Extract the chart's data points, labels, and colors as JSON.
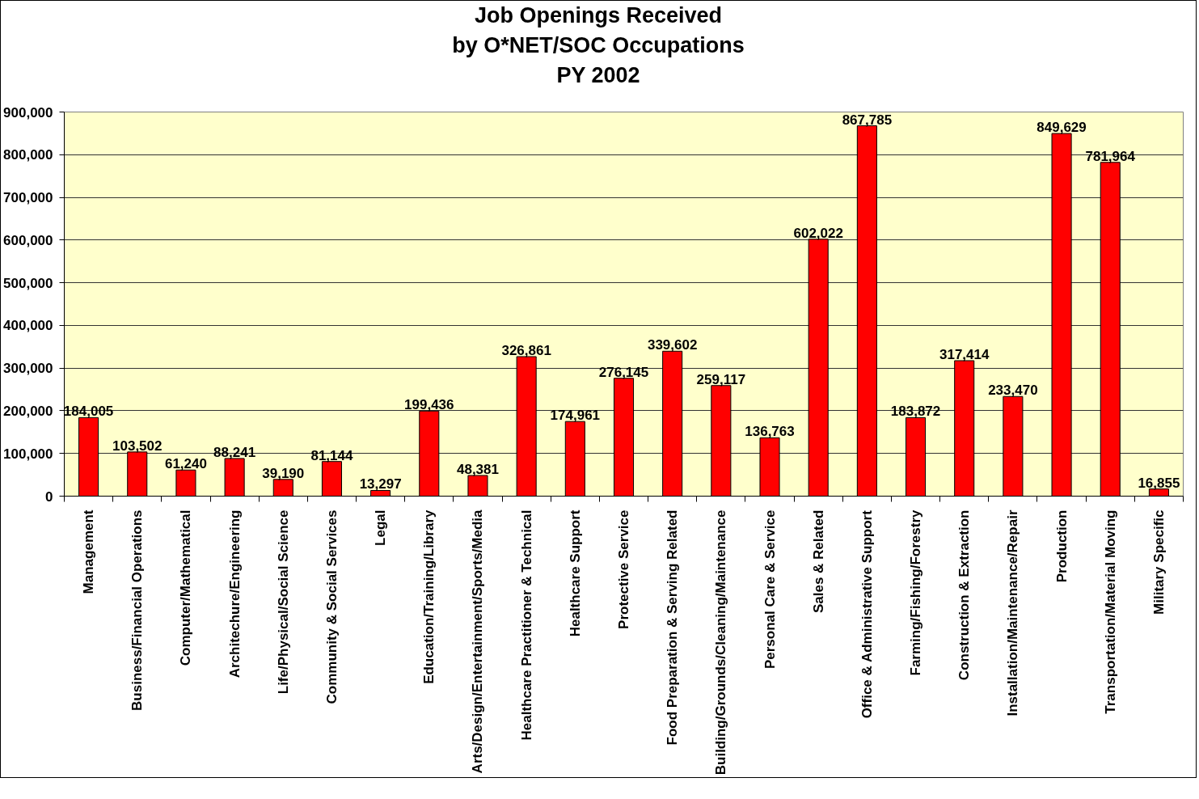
{
  "chart_data": {
    "type": "bar",
    "title": "Job Openings Received\nby O*NET/SOC Occupations\nPY 2002",
    "categories": [
      "Management",
      "Business/Financial Operations",
      "Computer/Mathematical",
      "Architechure/Engineering",
      "Life/Physical/Social Science",
      "Community & Social Services",
      "Legal",
      "Education/Training/Library",
      "Arts/Design/Entertainment/Sports/Media",
      "Healthcare Practitioner & Technical",
      "Healthcare Support",
      "Protective Service",
      "Food Preparation & Serving Related",
      "Building/Grounds/Cleaning/Maintenance",
      "Personal Care & Service",
      "Sales & Related",
      "Office & Administrative Support",
      "Farming/Fishing/Forestry",
      "Construction & Extraction",
      "Installation/Maintenance/Repair",
      "Production",
      "Transportation/Material Moving",
      "Military Specific"
    ],
    "values": [
      184005,
      103502,
      61240,
      88241,
      39190,
      81144,
      13297,
      199436,
      48381,
      326861,
      174961,
      276145,
      339602,
      259117,
      136763,
      602022,
      867785,
      183872,
      317414,
      233470,
      849629,
      781964,
      16855
    ],
    "value_labels": [
      "184,005",
      "103,502",
      "61,240",
      "88,241",
      "39,190",
      "81,144",
      "13,297",
      "199,436",
      "48,381",
      "326,861",
      "174,961",
      "276,145",
      "339,602",
      "259,117",
      "136,763",
      "602,022",
      "867,785",
      "183,872",
      "317,414",
      "233,470",
      "849,629",
      "781,964",
      "16,855"
    ],
    "color": "#ff0000",
    "grid": "y",
    "ylim": [
      0,
      900000
    ],
    "yticks": [
      {
        "value": 0,
        "label": "0"
      },
      {
        "value": 100000,
        "label": "100,000"
      },
      {
        "value": 200000,
        "label": "200,000"
      },
      {
        "value": 300000,
        "label": "300,000"
      },
      {
        "value": 400000,
        "label": "400,000"
      },
      {
        "value": 500000,
        "label": "500,000"
      },
      {
        "value": 600000,
        "label": "600,000"
      },
      {
        "value": 700000,
        "label": "700,000"
      },
      {
        "value": 800000,
        "label": "800,000"
      },
      {
        "value": 900000,
        "label": "900,000"
      }
    ]
  }
}
